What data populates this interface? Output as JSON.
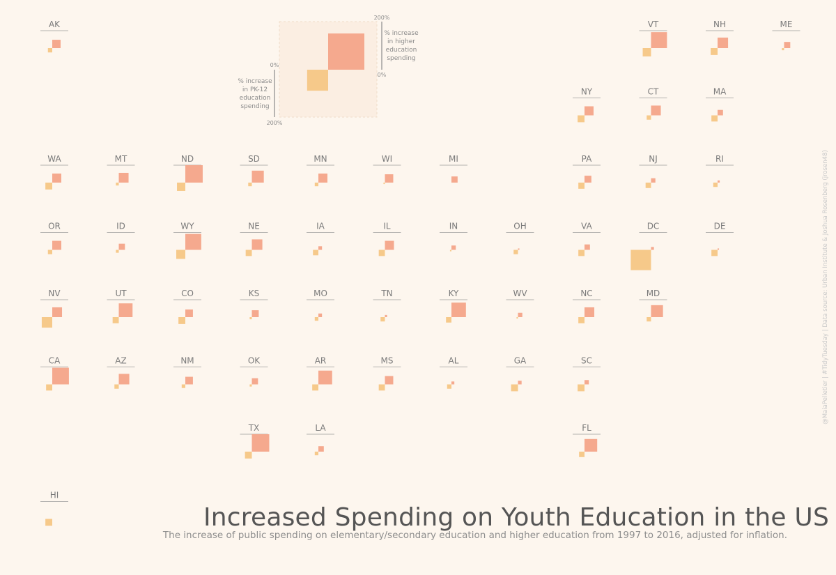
{
  "title": "Increased Spending on Youth Education in the US",
  "subtitle": "The increase of public spending on elementary/secondary education and higher education from 1997 to 2016, adjusted for inflation.",
  "caption": "@MaiaPelletier | #TidyTuesday | Data source: Urban Institute & Joshua Rosenberg (jrosen48)",
  "colors": {
    "background": "#fdf6ee",
    "higher_ed": "#f5a98e",
    "pk12": "#f6c98a",
    "label": "#7a7a7a",
    "rule": "#9a9a9a",
    "legend_box": "#fbeee2"
  },
  "legend": {
    "higher_label": "% increase in higher education spending",
    "higher_label_lines": [
      "% increase",
      "in higher",
      "education",
      "spending"
    ],
    "pk12_label": "% increase in PK-12 education spending",
    "pk12_label_lines": [
      "% increase",
      "in PK-12",
      "education",
      "spending"
    ],
    "higher_top": "200%",
    "higher_bottom": "0%",
    "pk12_top": "0%",
    "pk12_bottom": "200%",
    "example_higher_pct": 100,
    "example_pk12_pct": 58
  },
  "chart_data": {
    "type": "tile-grid-map",
    "description_units": "percent increase 1997 to 2016, inflation adjusted",
    "series": [
      {
        "name": "% increase in higher education spending",
        "color": "#f5a98e"
      },
      {
        "name": "% increase in PK-12 education spending",
        "color": "#f6c98a"
      }
    ],
    "scale_max_pct": 200,
    "states": [
      {
        "abbr": "AK",
        "col": 0,
        "row": 0,
        "higher": 23,
        "pk12": 12
      },
      {
        "abbr": "VT",
        "col": 9,
        "row": 0,
        "higher": 44,
        "pk12": 23
      },
      {
        "abbr": "NH",
        "col": 10,
        "row": 0,
        "higher": 29,
        "pk12": 19
      },
      {
        "abbr": "ME",
        "col": 11,
        "row": 0,
        "higher": 17,
        "pk12": 6
      },
      {
        "abbr": "NY",
        "col": 8,
        "row": 1,
        "higher": 25,
        "pk12": 19
      },
      {
        "abbr": "CT",
        "col": 9,
        "row": 1,
        "higher": 27,
        "pk12": 12
      },
      {
        "abbr": "MA",
        "col": 10,
        "row": 1,
        "higher": 15,
        "pk12": 17
      },
      {
        "abbr": "WA",
        "col": 0,
        "row": 2,
        "higher": 25,
        "pk12": 19
      },
      {
        "abbr": "MT",
        "col": 1,
        "row": 2,
        "higher": 27,
        "pk12": 8
      },
      {
        "abbr": "ND",
        "col": 2,
        "row": 2,
        "higher": 48,
        "pk12": 23
      },
      {
        "abbr": "SD",
        "col": 3,
        "row": 2,
        "higher": 33,
        "pk12": 10
      },
      {
        "abbr": "MN",
        "col": 4,
        "row": 2,
        "higher": 25,
        "pk12": 10
      },
      {
        "abbr": "WI",
        "col": 5,
        "row": 2,
        "higher": 23,
        "pk12": 4
      },
      {
        "abbr": "MI",
        "col": 6,
        "row": 2,
        "higher": 17,
        "pk12": 0
      },
      {
        "abbr": "PA",
        "col": 8,
        "row": 2,
        "higher": 19,
        "pk12": 17
      },
      {
        "abbr": "NJ",
        "col": 9,
        "row": 2,
        "higher": 12,
        "pk12": 15
      },
      {
        "abbr": "RI",
        "col": 10,
        "row": 2,
        "higher": 6,
        "pk12": 12
      },
      {
        "abbr": "OR",
        "col": 0,
        "row": 3,
        "higher": 25,
        "pk12": 12
      },
      {
        "abbr": "ID",
        "col": 1,
        "row": 3,
        "higher": 17,
        "pk12": 8
      },
      {
        "abbr": "WY",
        "col": 2,
        "row": 3,
        "higher": 44,
        "pk12": 25
      },
      {
        "abbr": "NE",
        "col": 3,
        "row": 3,
        "higher": 29,
        "pk12": 17
      },
      {
        "abbr": "IA",
        "col": 4,
        "row": 3,
        "higher": 10,
        "pk12": 15
      },
      {
        "abbr": "IL",
        "col": 5,
        "row": 3,
        "higher": 25,
        "pk12": 17
      },
      {
        "abbr": "IN",
        "col": 6,
        "row": 3,
        "higher": 12,
        "pk12": 4
      },
      {
        "abbr": "OH",
        "col": 7,
        "row": 3,
        "higher": 4,
        "pk12": 12
      },
      {
        "abbr": "VA",
        "col": 8,
        "row": 3,
        "higher": 15,
        "pk12": 17
      },
      {
        "abbr": "DC",
        "col": 9,
        "row": 3,
        "higher": 8,
        "pk12": 56
      },
      {
        "abbr": "DE",
        "col": 10,
        "row": 3,
        "higher": 4,
        "pk12": 17
      },
      {
        "abbr": "NV",
        "col": 0,
        "row": 4,
        "higher": 27,
        "pk12": 29
      },
      {
        "abbr": "UT",
        "col": 1,
        "row": 4,
        "higher": 38,
        "pk12": 17
      },
      {
        "abbr": "CO",
        "col": 2,
        "row": 4,
        "higher": 21,
        "pk12": 19
      },
      {
        "abbr": "KS",
        "col": 3,
        "row": 4,
        "higher": 19,
        "pk12": 6
      },
      {
        "abbr": "MO",
        "col": 4,
        "row": 4,
        "higher": 10,
        "pk12": 10
      },
      {
        "abbr": "TN",
        "col": 5,
        "row": 4,
        "higher": 6,
        "pk12": 12
      },
      {
        "abbr": "KY",
        "col": 6,
        "row": 4,
        "higher": 40,
        "pk12": 15
      },
      {
        "abbr": "WV",
        "col": 7,
        "row": 4,
        "higher": 12,
        "pk12": 4
      },
      {
        "abbr": "NC",
        "col": 8,
        "row": 4,
        "higher": 27,
        "pk12": 17
      },
      {
        "abbr": "MD",
        "col": 9,
        "row": 4,
        "higher": 33,
        "pk12": 12
      },
      {
        "abbr": "CA",
        "col": 0,
        "row": 5,
        "higher": 46,
        "pk12": 17
      },
      {
        "abbr": "AZ",
        "col": 1,
        "row": 5,
        "higher": 29,
        "pk12": 12
      },
      {
        "abbr": "NM",
        "col": 2,
        "row": 5,
        "higher": 21,
        "pk12": 10
      },
      {
        "abbr": "OK",
        "col": 3,
        "row": 5,
        "higher": 17,
        "pk12": 6
      },
      {
        "abbr": "AR",
        "col": 4,
        "row": 5,
        "higher": 38,
        "pk12": 17
      },
      {
        "abbr": "MS",
        "col": 5,
        "row": 5,
        "higher": 23,
        "pk12": 17
      },
      {
        "abbr": "AL",
        "col": 6,
        "row": 5,
        "higher": 8,
        "pk12": 12
      },
      {
        "abbr": "GA",
        "col": 7,
        "row": 5,
        "higher": 10,
        "pk12": 19
      },
      {
        "abbr": "SC",
        "col": 8,
        "row": 5,
        "higher": 12,
        "pk12": 19
      },
      {
        "abbr": "TX",
        "col": 3,
        "row": 6,
        "higher": 48,
        "pk12": 19
      },
      {
        "abbr": "LA",
        "col": 4,
        "row": 6,
        "higher": 15,
        "pk12": 10
      },
      {
        "abbr": "FL",
        "col": 8,
        "row": 6,
        "higher": 35,
        "pk12": 15
      },
      {
        "abbr": "HI",
        "col": 0,
        "row": 7,
        "higher": 0,
        "pk12": 19
      }
    ]
  }
}
